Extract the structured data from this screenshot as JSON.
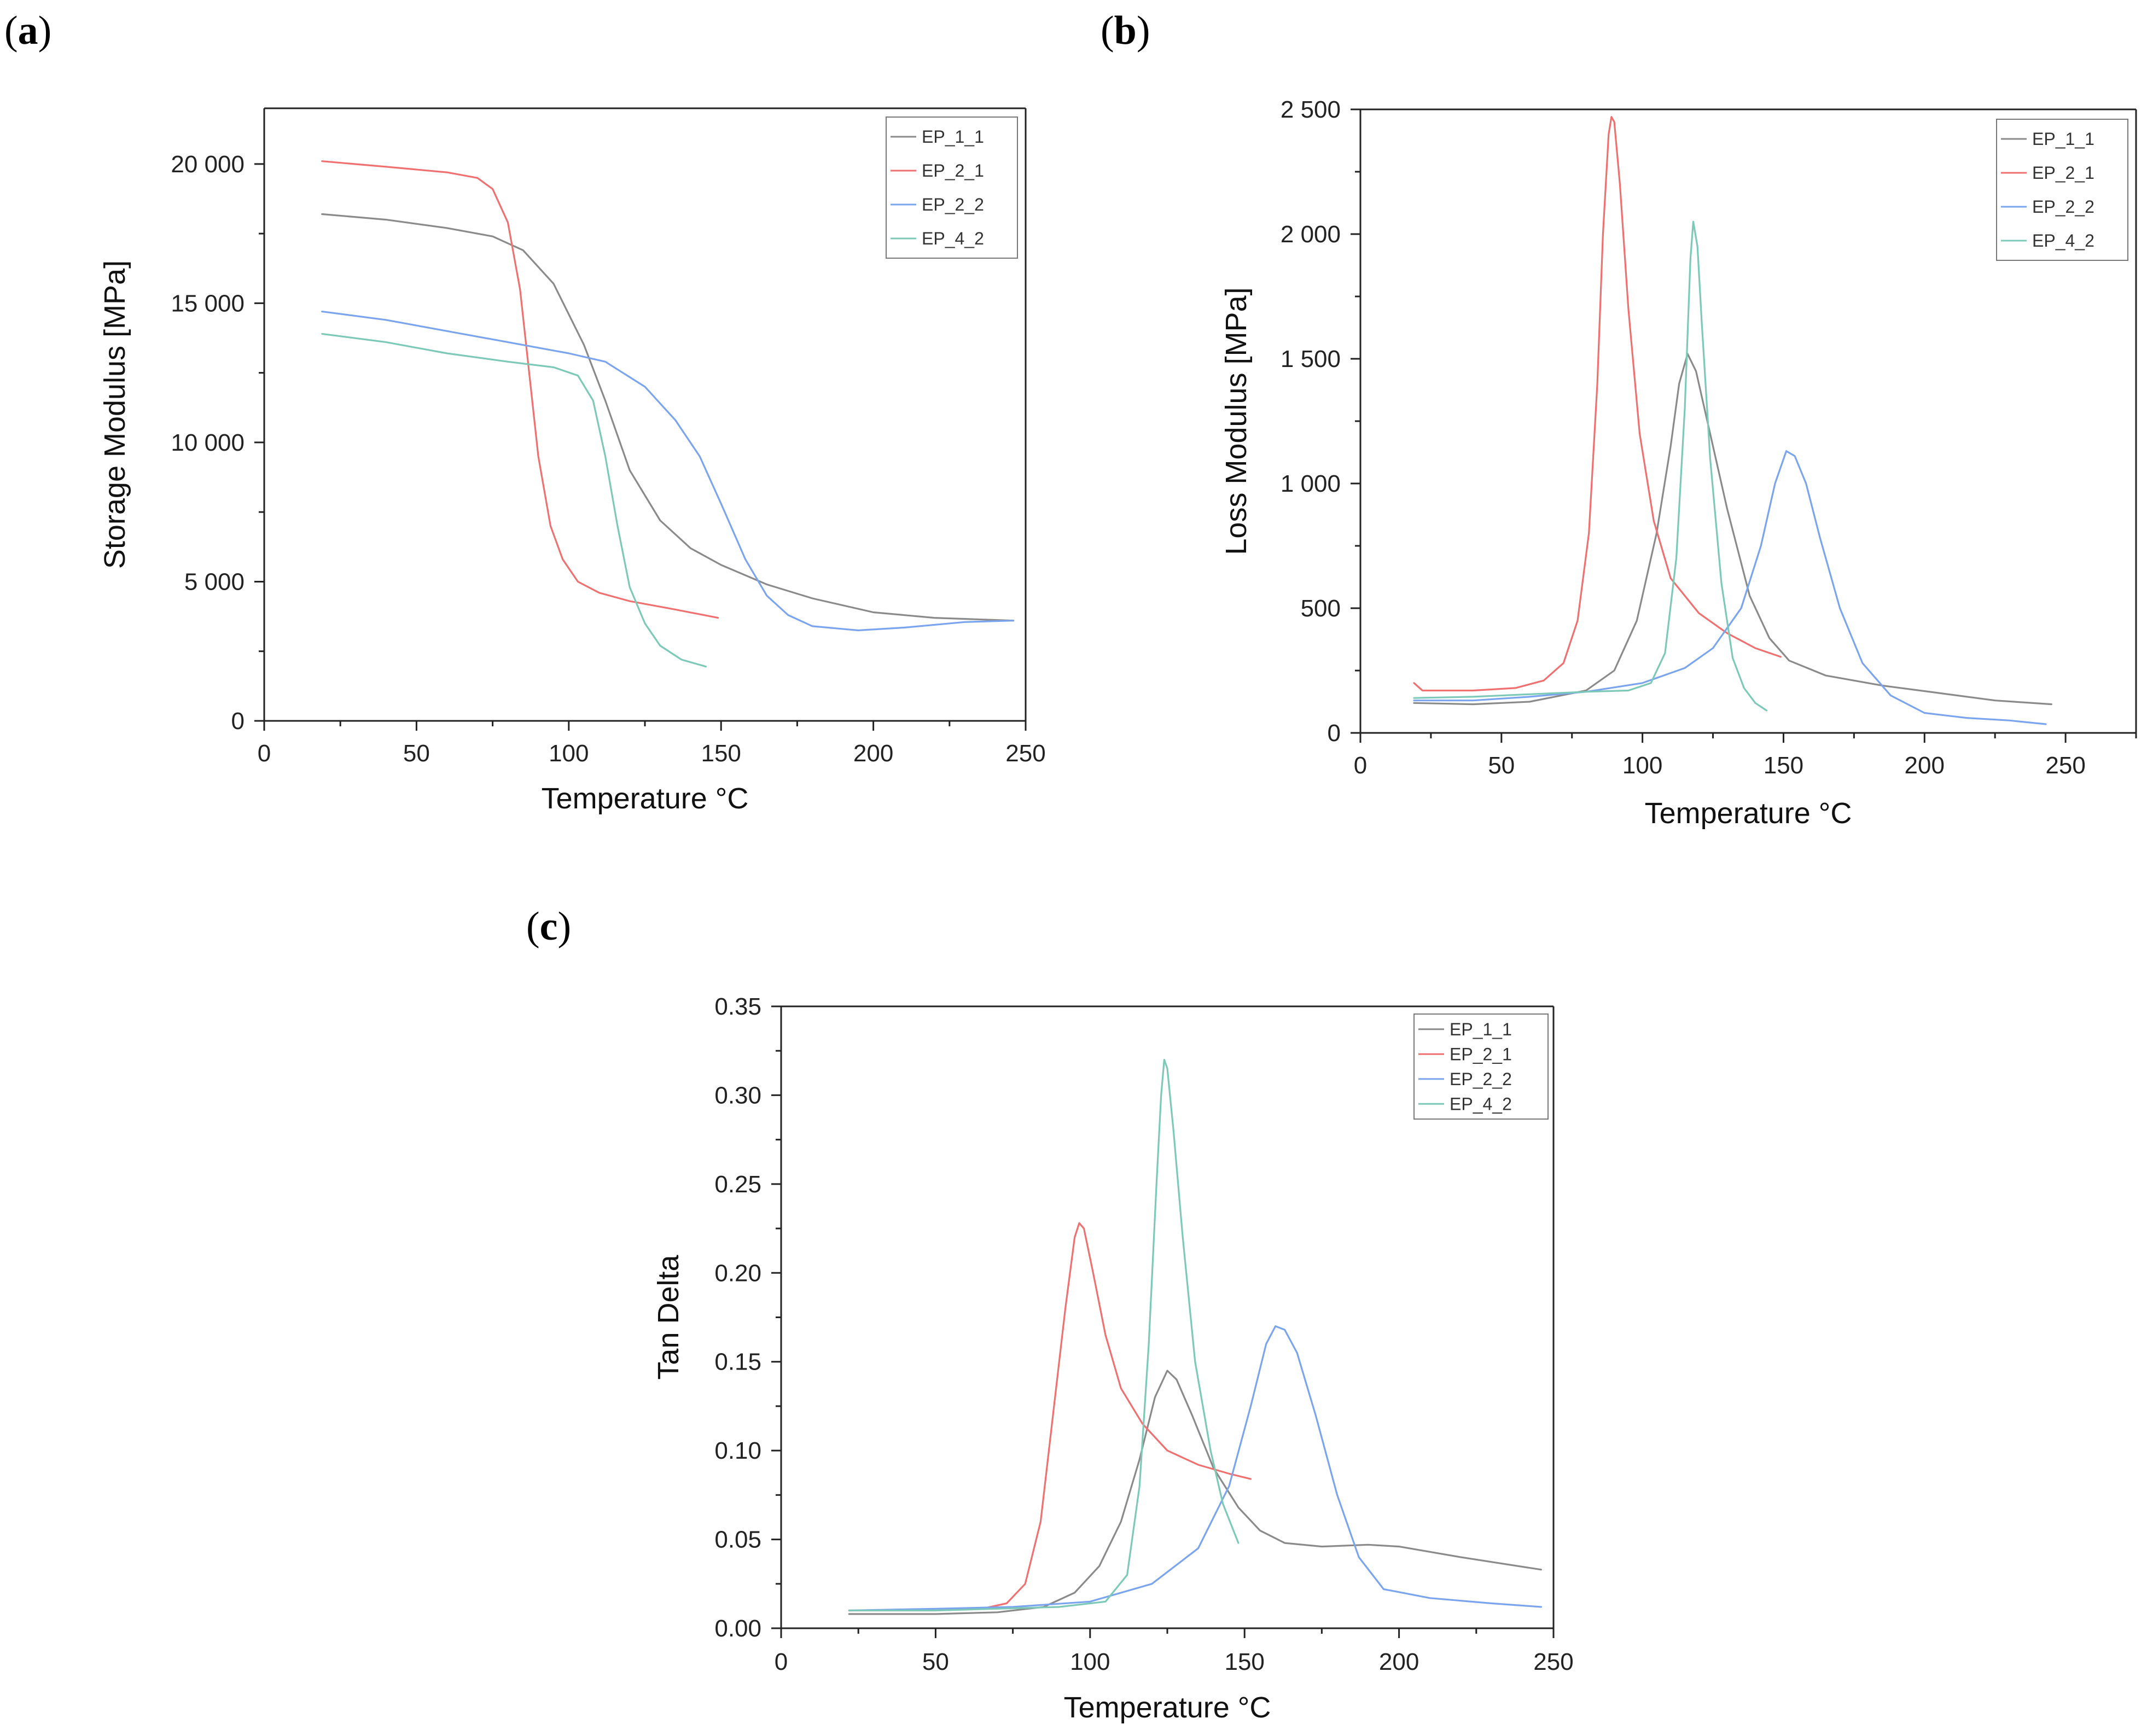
{
  "panels": {
    "a": {
      "label_open": "(",
      "label_letter": "a",
      "label_close": ")"
    },
    "b": {
      "label_open": "(",
      "label_letter": "b",
      "label_close": ")"
    },
    "c": {
      "label_open": "(",
      "label_letter": "c",
      "label_close": ")"
    }
  },
  "colors": {
    "EP_1_1": "#8a8a8a",
    "EP_2_1": "#f07070",
    "EP_2_2": "#7aa4ee",
    "EP_4_2": "#7cc9b8"
  },
  "chart_data": [
    {
      "id": "a",
      "type": "line",
      "title": "",
      "xlabel": "Temperature °C",
      "ylabel": "Storage Modulus [MPa]",
      "xlim": [
        0,
        250
      ],
      "ylim": [
        0,
        22000
      ],
      "xticks": [
        0,
        50,
        100,
        150,
        200,
        250
      ],
      "xtick_labels": [
        "0",
        "50",
        "100",
        "150",
        "200",
        "250"
      ],
      "yticks": [
        0,
        5000,
        10000,
        15000,
        20000
      ],
      "ytick_labels": [
        "0",
        "5 000",
        "10 000",
        "15 000",
        "20 000"
      ],
      "legend": [
        "EP_1_1",
        "EP_2_1",
        "EP_2_2",
        "EP_4_2"
      ],
      "legend_position": "top-right",
      "series": [
        {
          "name": "EP_1_1",
          "points": [
            [
              19,
              18200
            ],
            [
              40,
              18000
            ],
            [
              60,
              17700
            ],
            [
              75,
              17400
            ],
            [
              85,
              16900
            ],
            [
              95,
              15700
            ],
            [
              105,
              13500
            ],
            [
              112,
              11500
            ],
            [
              120,
              9000
            ],
            [
              130,
              7200
            ],
            [
              140,
              6200
            ],
            [
              150,
              5600
            ],
            [
              165,
              4900
            ],
            [
              180,
              4400
            ],
            [
              200,
              3900
            ],
            [
              220,
              3700
            ],
            [
              246,
              3600
            ]
          ]
        },
        {
          "name": "EP_2_1",
          "points": [
            [
              19,
              20100
            ],
            [
              40,
              19900
            ],
            [
              60,
              19700
            ],
            [
              70,
              19500
            ],
            [
              75,
              19100
            ],
            [
              80,
              17900
            ],
            [
              84,
              15500
            ],
            [
              87,
              12500
            ],
            [
              90,
              9500
            ],
            [
              94,
              7000
            ],
            [
              98,
              5800
            ],
            [
              103,
              5000
            ],
            [
              110,
              4600
            ],
            [
              120,
              4300
            ],
            [
              135,
              4000
            ],
            [
              149,
              3700
            ]
          ]
        },
        {
          "name": "EP_2_2",
          "points": [
            [
              19,
              14700
            ],
            [
              40,
              14400
            ],
            [
              60,
              14000
            ],
            [
              80,
              13600
            ],
            [
              100,
              13200
            ],
            [
              112,
              12900
            ],
            [
              125,
              12000
            ],
            [
              135,
              10800
            ],
            [
              143,
              9500
            ],
            [
              150,
              7800
            ],
            [
              158,
              5800
            ],
            [
              165,
              4500
            ],
            [
              172,
              3800
            ],
            [
              180,
              3400
            ],
            [
              195,
              3250
            ],
            [
              210,
              3350
            ],
            [
              230,
              3550
            ],
            [
              246,
              3600
            ]
          ]
        },
        {
          "name": "EP_4_2",
          "points": [
            [
              19,
              13900
            ],
            [
              40,
              13600
            ],
            [
              60,
              13200
            ],
            [
              80,
              12900
            ],
            [
              95,
              12700
            ],
            [
              103,
              12400
            ],
            [
              108,
              11500
            ],
            [
              112,
              9500
            ],
            [
              116,
              7000
            ],
            [
              120,
              4800
            ],
            [
              125,
              3500
            ],
            [
              130,
              2700
            ],
            [
              137,
              2200
            ],
            [
              145,
              1950
            ]
          ]
        }
      ]
    },
    {
      "id": "b",
      "type": "line",
      "title": "",
      "xlabel": "Temperature °C",
      "ylabel": "Loss Modulus [MPa]",
      "xlim": [
        0,
        275
      ],
      "ylim": [
        0,
        2500
      ],
      "xticks": [
        0,
        50,
        100,
        150,
        200,
        250
      ],
      "xtick_labels": [
        "0",
        "50",
        "100",
        "150",
        "200",
        "250"
      ],
      "yticks": [
        0,
        500,
        1000,
        1500,
        2000,
        2500
      ],
      "ytick_labels": [
        "0",
        "500",
        "1 000",
        "1 500",
        "2 000",
        "2 500"
      ],
      "legend": [
        "EP_1_1",
        "EP_2_1",
        "EP_2_2",
        "EP_4_2"
      ],
      "legend_position": "top-right",
      "series": [
        {
          "name": "EP_1_1",
          "points": [
            [
              19,
              120
            ],
            [
              40,
              115
            ],
            [
              60,
              125
            ],
            [
              80,
              170
            ],
            [
              90,
              250
            ],
            [
              98,
              450
            ],
            [
              105,
              800
            ],
            [
              110,
              1150
            ],
            [
              113,
              1400
            ],
            [
              116,
              1520
            ],
            [
              119,
              1450
            ],
            [
              123,
              1250
            ],
            [
              130,
              900
            ],
            [
              138,
              550
            ],
            [
              145,
              380
            ],
            [
              152,
              290
            ],
            [
              165,
              230
            ],
            [
              185,
              190
            ],
            [
              205,
              160
            ],
            [
              225,
              130
            ],
            [
              245,
              115
            ]
          ]
        },
        {
          "name": "EP_2_1",
          "points": [
            [
              19,
              200
            ],
            [
              22,
              170
            ],
            [
              40,
              170
            ],
            [
              55,
              180
            ],
            [
              65,
              210
            ],
            [
              72,
              280
            ],
            [
              77,
              450
            ],
            [
              81,
              800
            ],
            [
              84,
              1400
            ],
            [
              86,
              2000
            ],
            [
              88,
              2400
            ],
            [
              89,
              2470
            ],
            [
              90,
              2450
            ],
            [
              92,
              2200
            ],
            [
              95,
              1700
            ],
            [
              99,
              1200
            ],
            [
              104,
              850
            ],
            [
              110,
              620
            ],
            [
              120,
              480
            ],
            [
              130,
              400
            ],
            [
              140,
              340
            ],
            [
              149,
              305
            ]
          ]
        },
        {
          "name": "EP_2_2",
          "points": [
            [
              19,
              130
            ],
            [
              40,
              130
            ],
            [
              60,
              145
            ],
            [
              80,
              165
            ],
            [
              100,
              200
            ],
            [
              115,
              260
            ],
            [
              125,
              340
            ],
            [
              135,
              500
            ],
            [
              142,
              750
            ],
            [
              147,
              1000
            ],
            [
              151,
              1130
            ],
            [
              154,
              1110
            ],
            [
              158,
              1000
            ],
            [
              163,
              780
            ],
            [
              170,
              500
            ],
            [
              178,
              280
            ],
            [
              188,
              150
            ],
            [
              200,
              80
            ],
            [
              215,
              60
            ],
            [
              230,
              50
            ],
            [
              243,
              35
            ]
          ]
        },
        {
          "name": "EP_4_2",
          "points": [
            [
              19,
              140
            ],
            [
              40,
              145
            ],
            [
              60,
              155
            ],
            [
              80,
              165
            ],
            [
              95,
              170
            ],
            [
              103,
              200
            ],
            [
              108,
              320
            ],
            [
              112,
              700
            ],
            [
              115,
              1300
            ],
            [
              117,
              1900
            ],
            [
              118,
              2050
            ],
            [
              119.5,
              1950
            ],
            [
              121,
              1650
            ],
            [
              124,
              1100
            ],
            [
              128,
              600
            ],
            [
              132,
              300
            ],
            [
              136,
              180
            ],
            [
              140,
              120
            ],
            [
              144,
              90
            ]
          ]
        }
      ]
    },
    {
      "id": "c",
      "type": "line",
      "title": "",
      "xlabel": "Temperature °C",
      "ylabel": "Tan Delta",
      "xlim": [
        0,
        250
      ],
      "ylim": [
        0,
        0.35
      ],
      "xticks": [
        0,
        50,
        100,
        150,
        200,
        250
      ],
      "xtick_labels": [
        "0",
        "50",
        "100",
        "150",
        "200",
        "250"
      ],
      "yticks": [
        0,
        0.05,
        0.1,
        0.15,
        0.2,
        0.25,
        0.3,
        0.35
      ],
      "ytick_labels": [
        "0.00",
        "0.05",
        "0.10",
        "0.15",
        "0.20",
        "0.25",
        "0.30",
        "0.35"
      ],
      "legend": [
        "EP_1_1",
        "EP_2_1",
        "EP_2_2",
        "EP_4_2"
      ],
      "legend_position": "top-right",
      "series": [
        {
          "name": "EP_1_1",
          "points": [
            [
              22,
              0.008
            ],
            [
              50,
              0.008
            ],
            [
              70,
              0.009
            ],
            [
              85,
              0.012
            ],
            [
              95,
              0.02
            ],
            [
              103,
              0.035
            ],
            [
              110,
              0.06
            ],
            [
              116,
              0.095
            ],
            [
              121,
              0.13
            ],
            [
              125,
              0.145
            ],
            [
              128,
              0.14
            ],
            [
              133,
              0.12
            ],
            [
              140,
              0.09
            ],
            [
              148,
              0.068
            ],
            [
              155,
              0.055
            ],
            [
              163,
              0.048
            ],
            [
              175,
              0.046
            ],
            [
              190,
              0.047
            ],
            [
              200,
              0.046
            ],
            [
              220,
              0.04
            ],
            [
              246,
              0.033
            ]
          ]
        },
        {
          "name": "EP_2_1",
          "points": [
            [
              22,
              0.01
            ],
            [
              50,
              0.01
            ],
            [
              65,
              0.011
            ],
            [
              73,
              0.014
            ],
            [
              79,
              0.025
            ],
            [
              84,
              0.06
            ],
            [
              88,
              0.12
            ],
            [
              92,
              0.18
            ],
            [
              95,
              0.22
            ],
            [
              96.5,
              0.228
            ],
            [
              98,
              0.225
            ],
            [
              101,
              0.2
            ],
            [
              105,
              0.165
            ],
            [
              110,
              0.135
            ],
            [
              117,
              0.115
            ],
            [
              125,
              0.1
            ],
            [
              135,
              0.092
            ],
            [
              145,
              0.087
            ],
            [
              152,
              0.084
            ]
          ]
        },
        {
          "name": "EP_2_2",
          "points": [
            [
              22,
              0.01
            ],
            [
              50,
              0.011
            ],
            [
              75,
              0.012
            ],
            [
              100,
              0.015
            ],
            [
              120,
              0.025
            ],
            [
              135,
              0.045
            ],
            [
              145,
              0.08
            ],
            [
              152,
              0.125
            ],
            [
              157,
              0.16
            ],
            [
              160,
              0.17
            ],
            [
              163,
              0.168
            ],
            [
              167,
              0.155
            ],
            [
              173,
              0.12
            ],
            [
              180,
              0.075
            ],
            [
              187,
              0.04
            ],
            [
              195,
              0.022
            ],
            [
              210,
              0.017
            ],
            [
              230,
              0.014
            ],
            [
              246,
              0.012
            ]
          ]
        },
        {
          "name": "EP_4_2",
          "points": [
            [
              22,
              0.01
            ],
            [
              50,
              0.01
            ],
            [
              70,
              0.011
            ],
            [
              90,
              0.012
            ],
            [
              105,
              0.015
            ],
            [
              112,
              0.03
            ],
            [
              116,
              0.08
            ],
            [
              119,
              0.16
            ],
            [
              121.5,
              0.25
            ],
            [
              123,
              0.3
            ],
            [
              124,
              0.32
            ],
            [
              125,
              0.315
            ],
            [
              127,
              0.28
            ],
            [
              130,
              0.22
            ],
            [
              134,
              0.15
            ],
            [
              139,
              0.1
            ],
            [
              143,
              0.07
            ],
            [
              148,
              0.048
            ]
          ]
        }
      ]
    }
  ]
}
